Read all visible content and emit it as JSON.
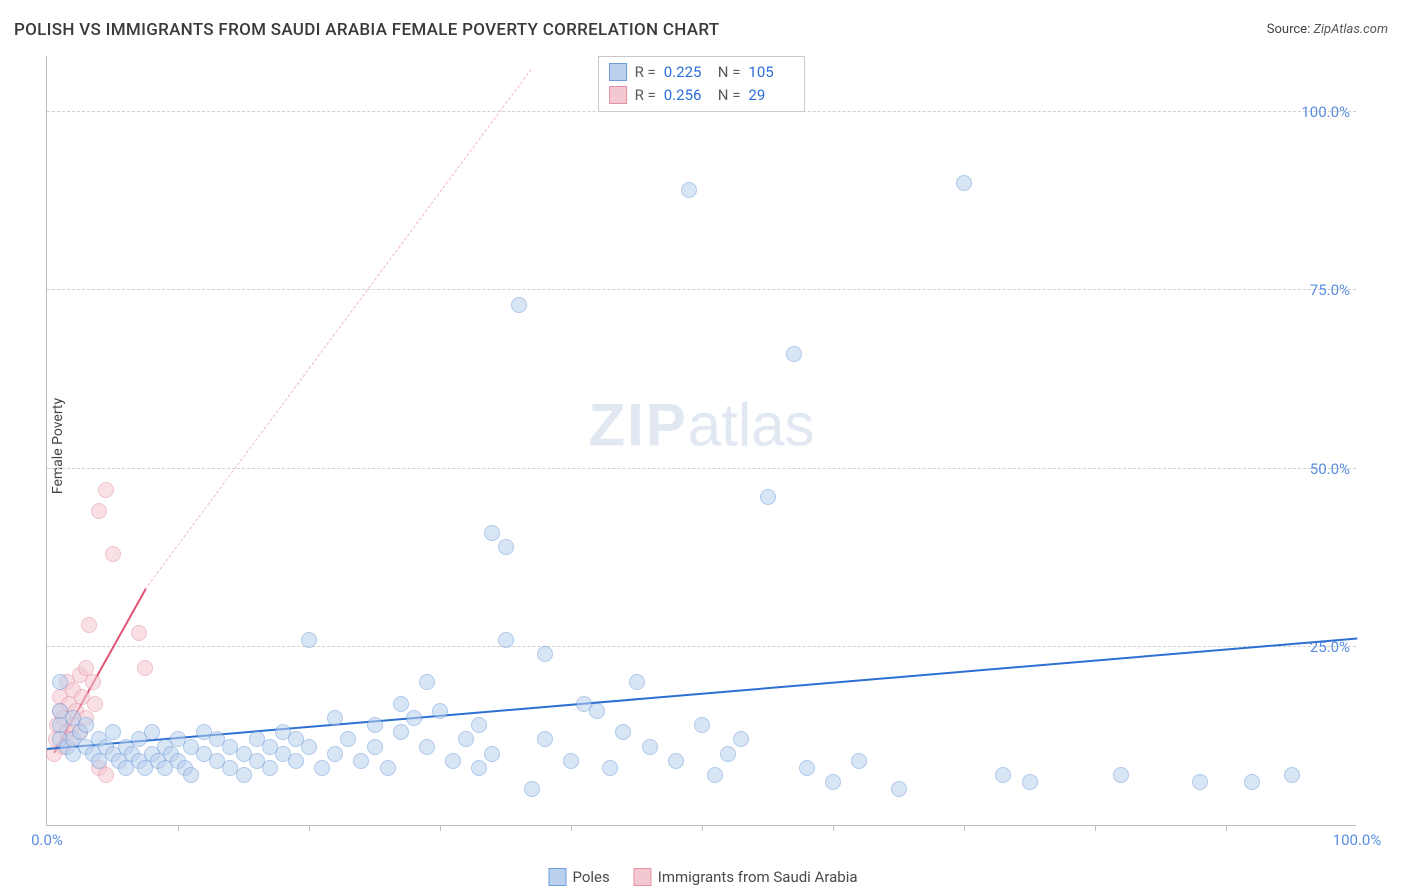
{
  "title": "POLISH VS IMMIGRANTS FROM SAUDI ARABIA FEMALE POVERTY CORRELATION CHART",
  "source_label": "Source:",
  "source_value": "ZipAtlas.com",
  "ylabel": "Female Poverty",
  "watermark_a": "ZIP",
  "watermark_b": "atlas",
  "chart": {
    "type": "scatter",
    "xlim": [
      0,
      100
    ],
    "ylim": [
      0,
      108
    ],
    "background_color": "#ffffff",
    "grid_color": "#d0d0d0",
    "axis_color": "#bfbfbf",
    "tick_label_color": "#5a8de0",
    "yticks": [
      25,
      50,
      75,
      100
    ],
    "ytick_labels": [
      "25.0%",
      "50.0%",
      "75.0%",
      "100.0%"
    ],
    "xtick_minor_step": 10,
    "x_start_label": "0.0%",
    "x_end_label": "100.0%",
    "point_radius": 8,
    "point_opacity": 0.55,
    "series": [
      {
        "name": "Poles",
        "fill": "#b9d0ee",
        "stroke": "#6f9dd9",
        "trend_color_solid": "#2e6fd2",
        "trend_color_dash": "#b9d0ee",
        "trend_solid": {
          "x1": 0,
          "y1": 10.5,
          "x2": 100,
          "y2": 26
        },
        "trend_dash": {
          "x1": 0,
          "y1": 10.5,
          "x2": 100,
          "y2": 26
        },
        "r_label": "R =",
        "r_value": "0.225",
        "n_label": "N =",
        "n_value": "105",
        "legend_label": "Poles",
        "points": [
          [
            1,
            20
          ],
          [
            1,
            16
          ],
          [
            1,
            14
          ],
          [
            1,
            12
          ],
          [
            1.5,
            11
          ],
          [
            2,
            15
          ],
          [
            2,
            12
          ],
          [
            2,
            10
          ],
          [
            2.5,
            13
          ],
          [
            3,
            11
          ],
          [
            3,
            14
          ],
          [
            3.5,
            10
          ],
          [
            4,
            12
          ],
          [
            4,
            9
          ],
          [
            4.5,
            11
          ],
          [
            5,
            10
          ],
          [
            5,
            13
          ],
          [
            5.5,
            9
          ],
          [
            6,
            11
          ],
          [
            6,
            8
          ],
          [
            6.5,
            10
          ],
          [
            7,
            9
          ],
          [
            7,
            12
          ],
          [
            7.5,
            8
          ],
          [
            8,
            10
          ],
          [
            8,
            13
          ],
          [
            8.5,
            9
          ],
          [
            9,
            11
          ],
          [
            9,
            8
          ],
          [
            9.5,
            10
          ],
          [
            10,
            9
          ],
          [
            10,
            12
          ],
          [
            10.5,
            8
          ],
          [
            11,
            11
          ],
          [
            11,
            7
          ],
          [
            12,
            10
          ],
          [
            12,
            13
          ],
          [
            13,
            9
          ],
          [
            13,
            12
          ],
          [
            14,
            8
          ],
          [
            14,
            11
          ],
          [
            15,
            10
          ],
          [
            15,
            7
          ],
          [
            16,
            12
          ],
          [
            16,
            9
          ],
          [
            17,
            11
          ],
          [
            17,
            8
          ],
          [
            18,
            10
          ],
          [
            18,
            13
          ],
          [
            19,
            9
          ],
          [
            19,
            12
          ],
          [
            20,
            11
          ],
          [
            20,
            26
          ],
          [
            21,
            8
          ],
          [
            22,
            15
          ],
          [
            22,
            10
          ],
          [
            23,
            12
          ],
          [
            24,
            9
          ],
          [
            25,
            14
          ],
          [
            25,
            11
          ],
          [
            26,
            8
          ],
          [
            27,
            13
          ],
          [
            27,
            17
          ],
          [
            28,
            15
          ],
          [
            29,
            11
          ],
          [
            29,
            20
          ],
          [
            30,
            16
          ],
          [
            31,
            9
          ],
          [
            32,
            12
          ],
          [
            33,
            8
          ],
          [
            33,
            14
          ],
          [
            34,
            41
          ],
          [
            34,
            10
          ],
          [
            35,
            26
          ],
          [
            35,
            39
          ],
          [
            36,
            73
          ],
          [
            37,
            5
          ],
          [
            38,
            24
          ],
          [
            38,
            12
          ],
          [
            40,
            9
          ],
          [
            41,
            17
          ],
          [
            42,
            16
          ],
          [
            43,
            8
          ],
          [
            44,
            13
          ],
          [
            45,
            20
          ],
          [
            46,
            11
          ],
          [
            48,
            9
          ],
          [
            49,
            89
          ],
          [
            50,
            14
          ],
          [
            51,
            7
          ],
          [
            52,
            10
          ],
          [
            53,
            12
          ],
          [
            55,
            46
          ],
          [
            57,
            66
          ],
          [
            58,
            8
          ],
          [
            60,
            6
          ],
          [
            62,
            9
          ],
          [
            65,
            5
          ],
          [
            70,
            90
          ],
          [
            73,
            7
          ],
          [
            75,
            6
          ],
          [
            82,
            7
          ],
          [
            88,
            6
          ],
          [
            92,
            6
          ],
          [
            95,
            7
          ]
        ]
      },
      {
        "name": "Immigrants from Saudi Arabia",
        "fill": "#f3c8d1",
        "stroke": "#e592a6",
        "trend_color_solid": "#e05576",
        "trend_color_dash": "#f0b9c6",
        "trend_solid": {
          "x1": 0.5,
          "y1": 10,
          "x2": 7.5,
          "y2": 33
        },
        "trend_dash": {
          "x1": 7.5,
          "y1": 33,
          "x2": 37,
          "y2": 106
        },
        "r_label": "R =",
        "r_value": "0.256",
        "n_label": "N =",
        "n_value": "29",
        "legend_label": "Immigrants from Saudi Arabia",
        "points": [
          [
            0.5,
            10
          ],
          [
            0.7,
            12
          ],
          [
            0.8,
            14
          ],
          [
            1,
            16
          ],
          [
            1,
            18
          ],
          [
            1.2,
            15
          ],
          [
            1.3,
            11
          ],
          [
            1.5,
            13
          ],
          [
            1.5,
            20
          ],
          [
            1.7,
            17
          ],
          [
            1.8,
            12
          ],
          [
            2,
            14
          ],
          [
            2,
            19
          ],
          [
            2.2,
            16
          ],
          [
            2.5,
            21
          ],
          [
            2.5,
            13
          ],
          [
            2.7,
            18
          ],
          [
            3,
            22
          ],
          [
            3,
            15
          ],
          [
            3.2,
            28
          ],
          [
            3.5,
            20
          ],
          [
            3.7,
            17
          ],
          [
            4,
            44
          ],
          [
            4,
            8
          ],
          [
            4.5,
            47
          ],
          [
            4.5,
            7
          ],
          [
            5,
            38
          ],
          [
            7,
            27
          ],
          [
            7.5,
            22
          ]
        ]
      }
    ]
  }
}
